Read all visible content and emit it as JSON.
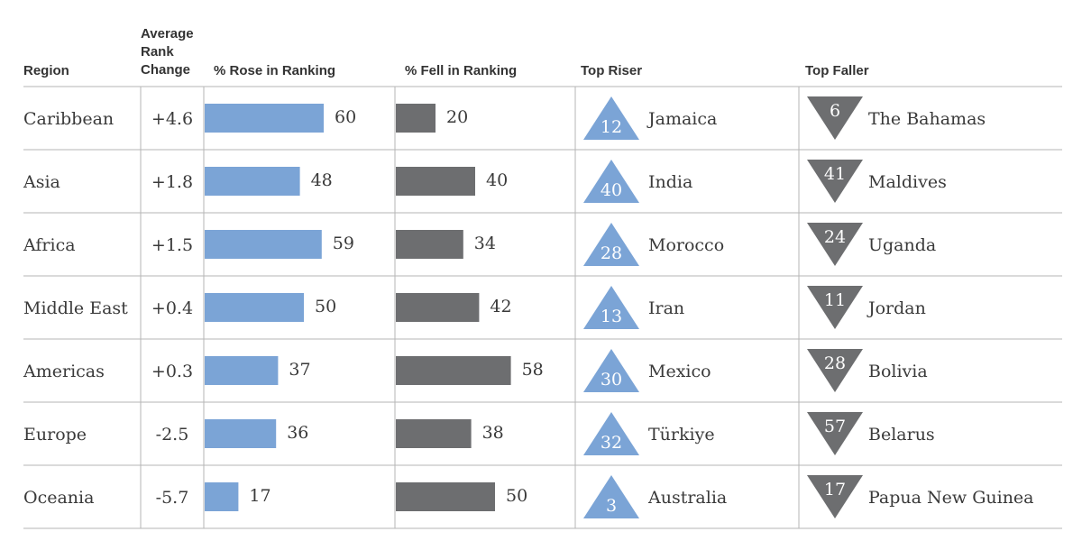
{
  "colors": {
    "rose": "#7ba4d6",
    "fell": "#6d6e70",
    "riser_triangle": "#7ba4d6",
    "faller_triangle": "#6d6e70",
    "grid": "#b5b5b5",
    "text": "#3a3a3a"
  },
  "chart_data": {
    "type": "table",
    "headers": {
      "region": "Region",
      "avg_change": [
        "Average",
        "Rank",
        "Change"
      ],
      "rose": "% Rose in Ranking",
      "fell": "% Fell in Ranking",
      "top_riser": "Top Riser",
      "top_faller": "Top Faller"
    },
    "bar_scale_max": 60,
    "rows": [
      {
        "region": "Caribbean",
        "avg_change": "+4.6",
        "rose": 60,
        "fell": 20,
        "riser_rank": 12,
        "riser": "Jamaica",
        "faller_rank": 6,
        "faller": "The Bahamas"
      },
      {
        "region": "Asia",
        "avg_change": "+1.8",
        "rose": 48,
        "fell": 40,
        "riser_rank": 40,
        "riser": "India",
        "faller_rank": 41,
        "faller": "Maldives"
      },
      {
        "region": "Africa",
        "avg_change": "+1.5",
        "rose": 59,
        "fell": 34,
        "riser_rank": 28,
        "riser": "Morocco",
        "faller_rank": 24,
        "faller": "Uganda"
      },
      {
        "region": "Middle East",
        "avg_change": "+0.4",
        "rose": 50,
        "fell": 42,
        "riser_rank": 13,
        "riser": "Iran",
        "faller_rank": 11,
        "faller": "Jordan"
      },
      {
        "region": "Americas",
        "avg_change": "+0.3",
        "rose": 37,
        "fell": 58,
        "riser_rank": 30,
        "riser": "Mexico",
        "faller_rank": 28,
        "faller": "Bolivia"
      },
      {
        "region": "Europe",
        "avg_change": "-2.5",
        "rose": 36,
        "fell": 38,
        "riser_rank": 32,
        "riser": "Türkiye",
        "faller_rank": 57,
        "faller": "Belarus"
      },
      {
        "region": "Oceania",
        "avg_change": "-5.7",
        "rose": 17,
        "fell": 50,
        "riser_rank": 3,
        "riser": "Australia",
        "faller_rank": 17,
        "faller": "Papua New Guinea"
      }
    ]
  }
}
